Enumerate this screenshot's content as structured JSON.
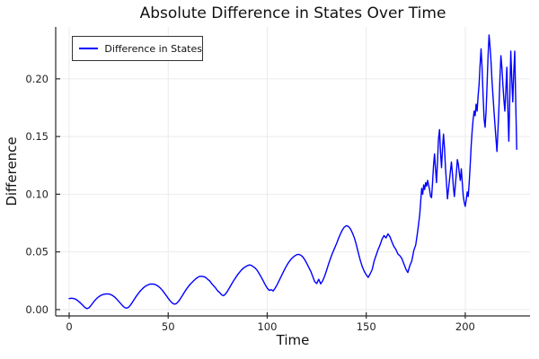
{
  "chart_data": {
    "type": "line",
    "title": "Absolute Difference in States Over Time",
    "xlabel": "Time",
    "ylabel": "Difference",
    "grid": true,
    "legend": {
      "position": "top-left",
      "entries": [
        {
          "label": "Difference in States",
          "color": "#0000ff"
        }
      ]
    },
    "xlim": [
      -6.8,
      232.7
    ],
    "ylim": [
      -0.0055,
      0.245
    ],
    "xticks": {
      "values": [
        0,
        50,
        100,
        150,
        200
      ],
      "labels": [
        "0",
        "50",
        "100",
        "150",
        "200"
      ]
    },
    "yticks": {
      "values": [
        0,
        0.05,
        0.1,
        0.15,
        0.2
      ],
      "labels": [
        "0.00",
        "0.05",
        "0.10",
        "0.15",
        "0.20"
      ]
    },
    "colors": {
      "line": "#0000ff",
      "grid": "#ebebeb",
      "axis": "#2a2a2a",
      "tick_text": "#222222"
    },
    "series": [
      {
        "name": "Difference in States",
        "color": "#0000ff",
        "points": [
          [
            0,
            0.0095
          ],
          [
            1,
            0.0098
          ],
          [
            2,
            0.0097
          ],
          [
            3,
            0.0092
          ],
          [
            4,
            0.0082
          ],
          [
            5,
            0.0068
          ],
          [
            6,
            0.0052
          ],
          [
            7,
            0.0035
          ],
          [
            8,
            0.0018
          ],
          [
            9,
            0.0008
          ],
          [
            10,
            0.0015
          ],
          [
            11,
            0.0035
          ],
          [
            12,
            0.0058
          ],
          [
            13,
            0.008
          ],
          [
            14,
            0.0098
          ],
          [
            15,
            0.0112
          ],
          [
            16,
            0.0123
          ],
          [
            17,
            0.013
          ],
          [
            18,
            0.0134
          ],
          [
            19,
            0.0136
          ],
          [
            20,
            0.0135
          ],
          [
            21,
            0.013
          ],
          [
            22,
            0.0121
          ],
          [
            23,
            0.0108
          ],
          [
            24,
            0.0091
          ],
          [
            25,
            0.0072
          ],
          [
            26,
            0.0052
          ],
          [
            27,
            0.0033
          ],
          [
            28,
            0.0018
          ],
          [
            29,
            0.0012
          ],
          [
            30,
            0.002
          ],
          [
            31,
            0.004
          ],
          [
            32,
            0.0065
          ],
          [
            33,
            0.0092
          ],
          [
            34,
            0.0118
          ],
          [
            35,
            0.0142
          ],
          [
            36,
            0.0163
          ],
          [
            37,
            0.0181
          ],
          [
            38,
            0.0196
          ],
          [
            39,
            0.0208
          ],
          [
            40,
            0.0216
          ],
          [
            41,
            0.0221
          ],
          [
            42,
            0.0222
          ],
          [
            43,
            0.022
          ],
          [
            44,
            0.0213
          ],
          [
            45,
            0.0202
          ],
          [
            46,
            0.0187
          ],
          [
            47,
            0.0168
          ],
          [
            48,
            0.0146
          ],
          [
            49,
            0.0122
          ],
          [
            50,
            0.0098
          ],
          [
            51,
            0.0076
          ],
          [
            52,
            0.0058
          ],
          [
            53,
            0.0048
          ],
          [
            54,
            0.005
          ],
          [
            55,
            0.0066
          ],
          [
            56,
            0.009
          ],
          [
            57,
            0.0117
          ],
          [
            58,
            0.0145
          ],
          [
            59,
            0.0172
          ],
          [
            60,
            0.0196
          ],
          [
            61,
            0.0217
          ],
          [
            62,
            0.0235
          ],
          [
            63,
            0.0252
          ],
          [
            64,
            0.0268
          ],
          [
            65,
            0.028
          ],
          [
            66,
            0.0288
          ],
          [
            67,
            0.0289
          ],
          [
            68,
            0.0285
          ],
          [
            69,
            0.0278
          ],
          [
            70,
            0.0262
          ],
          [
            71,
            0.0248
          ],
          [
            72,
            0.0224
          ],
          [
            73,
            0.0205
          ],
          [
            74,
            0.0186
          ],
          [
            75,
            0.0162
          ],
          [
            76,
            0.0148
          ],
          [
            77,
            0.0128
          ],
          [
            78,
            0.012
          ],
          [
            79,
            0.0136
          ],
          [
            80,
            0.0161
          ],
          [
            81,
            0.0191
          ],
          [
            82,
            0.0221
          ],
          [
            83,
            0.0249
          ],
          [
            84,
            0.0276
          ],
          [
            85,
            0.0301
          ],
          [
            86,
            0.0323
          ],
          [
            87,
            0.0343
          ],
          [
            88,
            0.0359
          ],
          [
            89,
            0.0371
          ],
          [
            90,
            0.0381
          ],
          [
            91,
            0.0387
          ],
          [
            92,
            0.0383
          ],
          [
            93,
            0.0371
          ],
          [
            94,
            0.0359
          ],
          [
            95,
            0.0339
          ],
          [
            96,
            0.0311
          ],
          [
            97,
            0.0281
          ],
          [
            98,
            0.0249
          ],
          [
            99,
            0.0216
          ],
          [
            100,
            0.0186
          ],
          [
            101,
            0.0166
          ],
          [
            102,
            0.0173
          ],
          [
            103,
            0.0161
          ],
          [
            104,
            0.0186
          ],
          [
            105,
            0.0216
          ],
          [
            106,
            0.0251
          ],
          [
            107,
            0.0286
          ],
          [
            108,
            0.0321
          ],
          [
            109,
            0.0356
          ],
          [
            110,
            0.0386
          ],
          [
            111,
            0.0413
          ],
          [
            112,
            0.0436
          ],
          [
            113,
            0.0453
          ],
          [
            114,
            0.0466
          ],
          [
            115,
            0.0476
          ],
          [
            116,
            0.0479
          ],
          [
            117,
            0.0471
          ],
          [
            118,
            0.0456
          ],
          [
            119,
            0.0431
          ],
          [
            120,
            0.0401
          ],
          [
            121,
            0.0366
          ],
          [
            122,
            0.0331
          ],
          [
            123,
            0.0286
          ],
          [
            124,
            0.0241
          ],
          [
            125,
            0.0226
          ],
          [
            126,
            0.0263
          ],
          [
            127,
            0.0223
          ],
          [
            128,
            0.0249
          ],
          [
            129,
            0.0291
          ],
          [
            130,
            0.0341
          ],
          [
            131,
            0.0396
          ],
          [
            132,
            0.0446
          ],
          [
            133,
            0.0491
          ],
          [
            134,
            0.0531
          ],
          [
            135,
            0.0571
          ],
          [
            136,
            0.0616
          ],
          [
            137,
            0.0656
          ],
          [
            138,
            0.0691
          ],
          [
            139,
            0.0716
          ],
          [
            140,
            0.0728
          ],
          [
            141,
            0.0721
          ],
          [
            142,
            0.0701
          ],
          [
            143,
            0.0666
          ],
          [
            144,
            0.0621
          ],
          [
            145,
            0.0561
          ],
          [
            146,
            0.0491
          ],
          [
            147,
            0.0426
          ],
          [
            148,
            0.0371
          ],
          [
            149,
            0.0331
          ],
          [
            150,
            0.0301
          ],
          [
            151,
            0.0279
          ],
          [
            152,
            0.0311
          ],
          [
            153,
            0.0346
          ],
          [
            154,
            0.0421
          ],
          [
            155,
            0.0471
          ],
          [
            156,
            0.0521
          ],
          [
            157,
            0.0561
          ],
          [
            158,
            0.0611
          ],
          [
            159,
            0.0641
          ],
          [
            160,
            0.0621
          ],
          [
            161,
            0.0656
          ],
          [
            162,
            0.0631
          ],
          [
            163,
            0.0586
          ],
          [
            164,
            0.0546
          ],
          [
            165,
            0.0521
          ],
          [
            166,
            0.0481
          ],
          [
            167,
            0.0466
          ],
          [
            168,
            0.0441
          ],
          [
            169,
            0.0396
          ],
          [
            170,
            0.0351
          ],
          [
            171,
            0.0321
          ],
          [
            172,
            0.0381
          ],
          [
            173,
            0.0421
          ],
          [
            174,
            0.0511
          ],
          [
            175,
            0.0561
          ],
          [
            176,
            0.0681
          ],
          [
            177,
            0.0821
          ],
          [
            178,
            0.105
          ],
          [
            178.5,
            0.1
          ],
          [
            179,
            0.108
          ],
          [
            179.5,
            0.104
          ],
          [
            180,
            0.11
          ],
          [
            180.5,
            0.107
          ],
          [
            181,
            0.112
          ],
          [
            181.5,
            0.108
          ],
          [
            182,
            0.104
          ],
          [
            182.5,
            0.098
          ],
          [
            183,
            0.097
          ],
          [
            183.5,
            0.11
          ],
          [
            184,
            0.125
          ],
          [
            184.5,
            0.135
          ],
          [
            185,
            0.122
          ],
          [
            185.5,
            0.11
          ],
          [
            186,
            0.128
          ],
          [
            186.5,
            0.148
          ],
          [
            187,
            0.156
          ],
          [
            187.5,
            0.136
          ],
          [
            188,
            0.123
          ],
          [
            188.5,
            0.14
          ],
          [
            189,
            0.152
          ],
          [
            189.5,
            0.14
          ],
          [
            190,
            0.123
          ],
          [
            190.5,
            0.11
          ],
          [
            191,
            0.096
          ],
          [
            191.5,
            0.104
          ],
          [
            192,
            0.112
          ],
          [
            192.5,
            0.12
          ],
          [
            193,
            0.128
          ],
          [
            193.5,
            0.118
          ],
          [
            194,
            0.106
          ],
          [
            194.5,
            0.098
          ],
          [
            195,
            0.108
          ],
          [
            195.5,
            0.118
          ],
          [
            196,
            0.13
          ],
          [
            196.5,
            0.126
          ],
          [
            197,
            0.118
          ],
          [
            197.5,
            0.112
          ],
          [
            198,
            0.122
          ],
          [
            198.5,
            0.11
          ],
          [
            199,
            0.098
          ],
          [
            199.5,
            0.093
          ],
          [
            200,
            0.0895
          ],
          [
            200.5,
            0.095
          ],
          [
            201,
            0.102
          ],
          [
            201.5,
            0.098
          ],
          [
            202,
            0.11
          ],
          [
            202.5,
            0.125
          ],
          [
            203,
            0.142
          ],
          [
            203.5,
            0.155
          ],
          [
            204,
            0.165
          ],
          [
            204.5,
            0.172
          ],
          [
            205,
            0.168
          ],
          [
            205.5,
            0.178
          ],
          [
            206,
            0.172
          ],
          [
            206.5,
            0.185
          ],
          [
            207,
            0.195
          ],
          [
            207.5,
            0.212
          ],
          [
            208,
            0.226
          ],
          [
            208.5,
            0.21
          ],
          [
            209,
            0.185
          ],
          [
            209.5,
            0.165
          ],
          [
            210,
            0.158
          ],
          [
            210.5,
            0.172
          ],
          [
            211,
            0.195
          ],
          [
            211.5,
            0.22
          ],
          [
            212,
            0.238
          ],
          [
            212.5,
            0.228
          ],
          [
            213,
            0.215
          ],
          [
            213.5,
            0.198
          ],
          [
            214,
            0.185
          ],
          [
            214.5,
            0.172
          ],
          [
            215,
            0.16
          ],
          [
            215.5,
            0.148
          ],
          [
            216,
            0.137
          ],
          [
            216.5,
            0.155
          ],
          [
            217,
            0.175
          ],
          [
            217.5,
            0.2
          ],
          [
            218,
            0.22
          ],
          [
            218.5,
            0.21
          ],
          [
            219,
            0.195
          ],
          [
            219.5,
            0.182
          ],
          [
            220,
            0.172
          ],
          [
            220.5,
            0.19
          ],
          [
            221,
            0.21
          ],
          [
            221.5,
            0.175
          ],
          [
            222,
            0.146
          ],
          [
            222.5,
            0.185
          ],
          [
            223,
            0.224
          ],
          [
            223.5,
            0.2
          ],
          [
            224,
            0.18
          ],
          [
            224.5,
            0.205
          ],
          [
            225,
            0.224
          ],
          [
            225.5,
            0.18
          ],
          [
            226,
            0.139
          ]
        ]
      }
    ]
  }
}
